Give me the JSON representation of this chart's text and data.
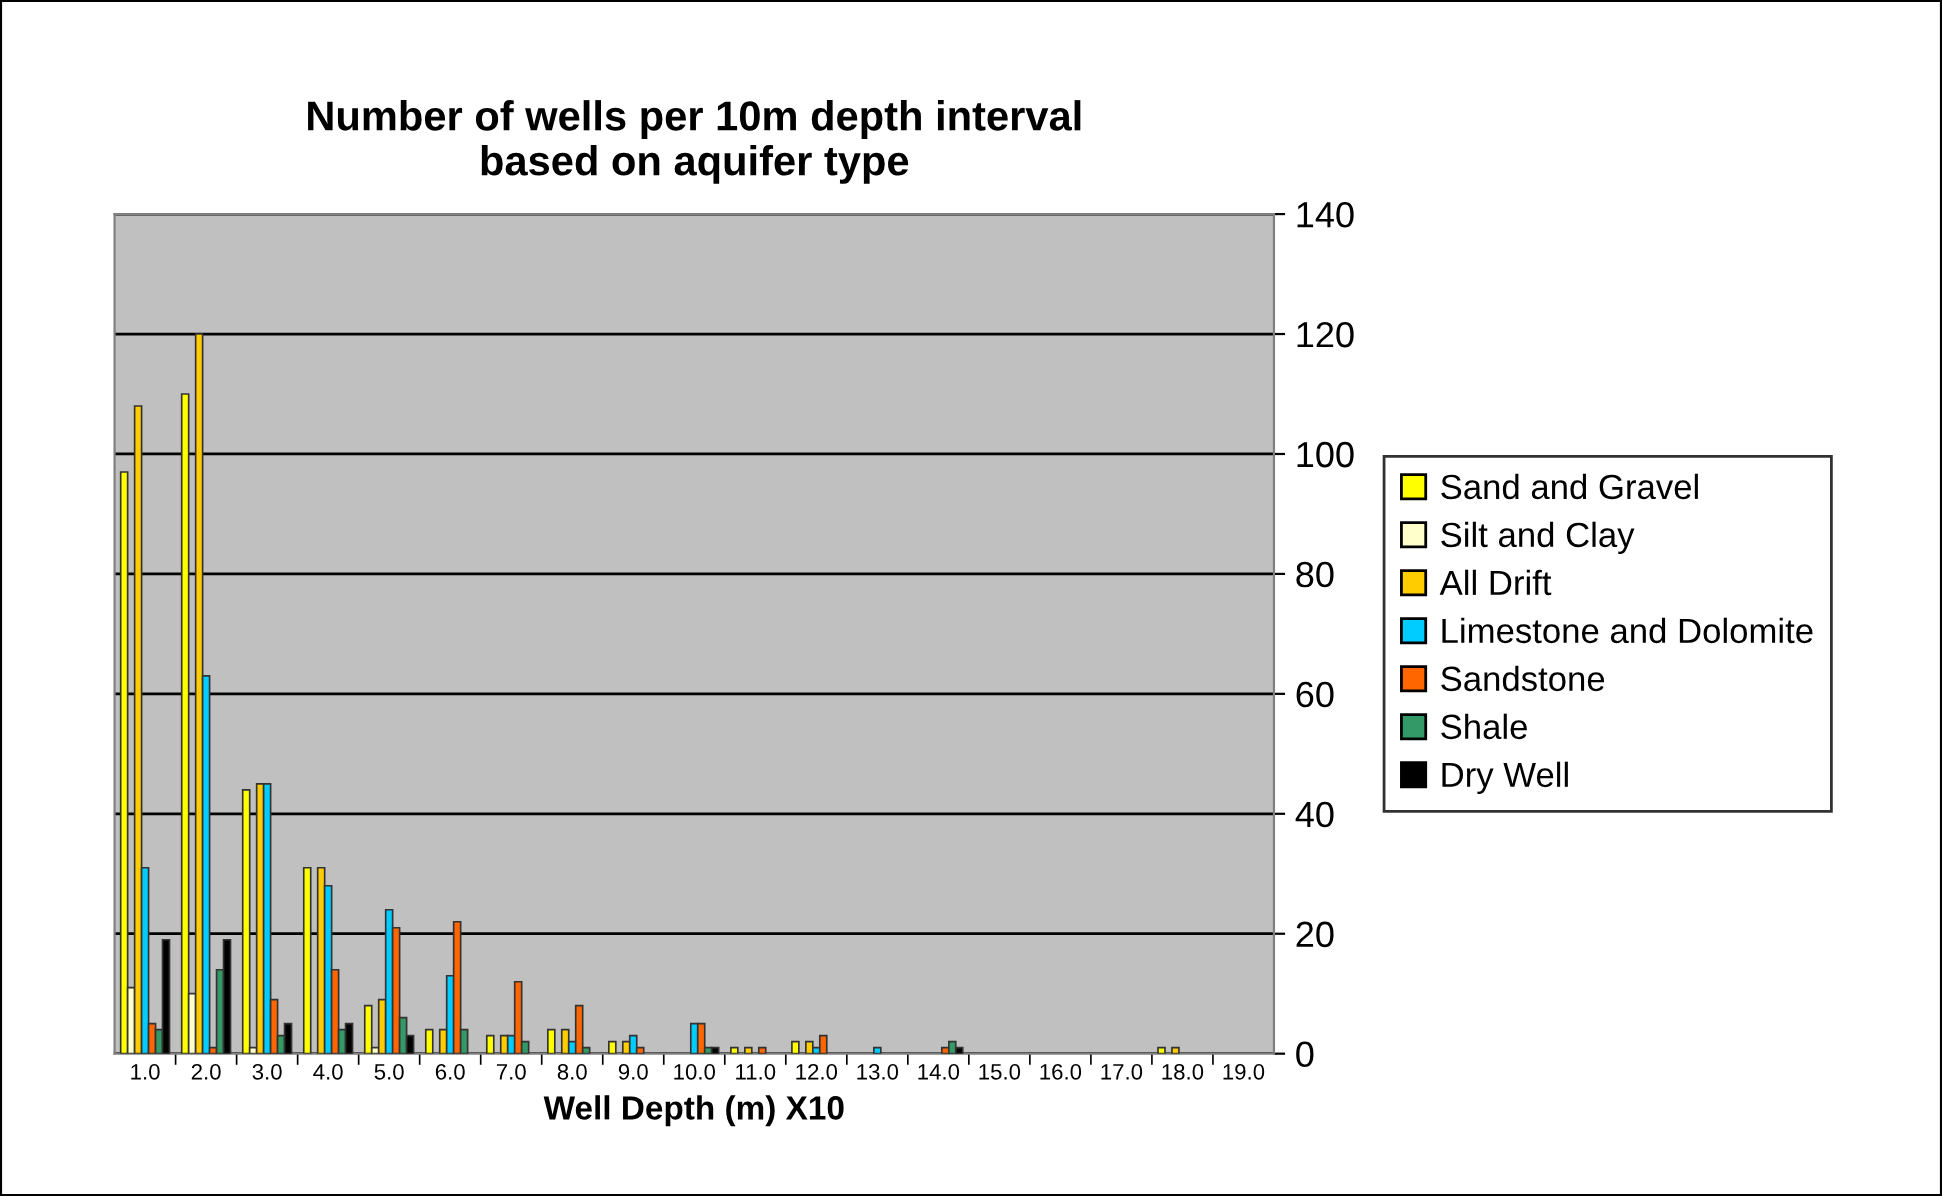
{
  "chart_data": {
    "type": "bar",
    "title": "Number of wells per 10m depth interval\nbased on aquifer type",
    "xlabel": "Well Depth (m) X10",
    "categories": [
      "1.0",
      "2.0",
      "3.0",
      "4.0",
      "5.0",
      "6.0",
      "7.0",
      "8.0",
      "9.0",
      "10.0",
      "11.0",
      "12.0",
      "13.0",
      "14.0",
      "15.0",
      "16.0",
      "17.0",
      "18.0",
      "19.0"
    ],
    "series": [
      {
        "name": "Sand and Gravel",
        "color": "#ffff00",
        "values": [
          97,
          110,
          44,
          31,
          8,
          4,
          3,
          4,
          2,
          null,
          1,
          2,
          null,
          null,
          null,
          null,
          null,
          1,
          null
        ]
      },
      {
        "name": "Silt and Clay",
        "color": "#ffffcc",
        "values": [
          11,
          10,
          1,
          null,
          1,
          null,
          null,
          null,
          null,
          null,
          null,
          null,
          null,
          null,
          null,
          null,
          null,
          null,
          null
        ]
      },
      {
        "name": "All Drift",
        "color": "#ffcc00",
        "values": [
          108,
          120,
          45,
          31,
          9,
          4,
          3,
          4,
          2,
          null,
          1,
          2,
          null,
          null,
          null,
          null,
          null,
          1,
          null
        ]
      },
      {
        "name": "Limestone and Dolomite",
        "color": "#00ccff",
        "values": [
          31,
          63,
          45,
          28,
          24,
          13,
          3,
          2,
          3,
          5,
          null,
          1,
          1,
          null,
          null,
          null,
          null,
          null,
          null
        ]
      },
      {
        "name": "Sandstone",
        "color": "#ff6600",
        "values": [
          5,
          1,
          9,
          14,
          21,
          22,
          12,
          8,
          1,
          5,
          1,
          3,
          null,
          1,
          null,
          null,
          null,
          null,
          null
        ]
      },
      {
        "name": "Shale",
        "color": "#339966",
        "values": [
          4,
          14,
          3,
          4,
          6,
          4,
          2,
          1,
          null,
          1,
          null,
          null,
          null,
          2,
          null,
          null,
          null,
          null,
          null
        ]
      },
      {
        "name": "Dry Well",
        "color": "#000000",
        "values": [
          19,
          19,
          5,
          5,
          3,
          null,
          null,
          null,
          null,
          1,
          null,
          null,
          null,
          1,
          null,
          null,
          null,
          null,
          null
        ]
      }
    ],
    "ylim": [
      0,
      140
    ],
    "yticks": [
      0,
      20,
      40,
      60,
      80,
      100,
      120,
      140
    ],
    "grid": "y",
    "legend": "right"
  }
}
